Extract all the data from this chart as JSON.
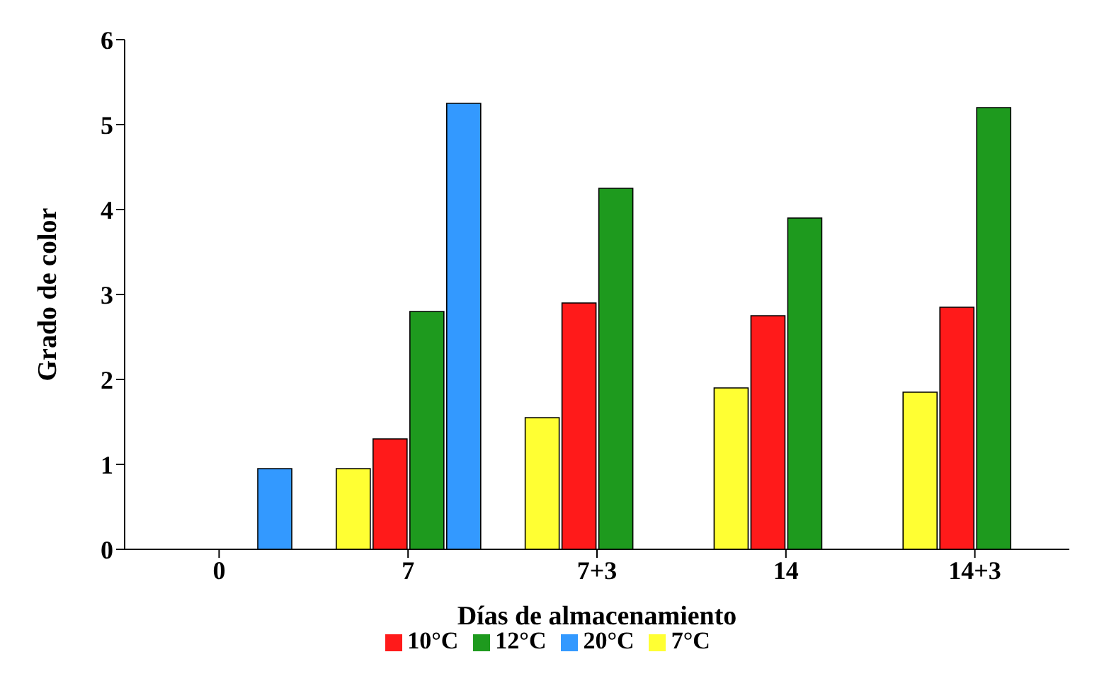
{
  "chart_data": {
    "type": "bar",
    "xlabel": "Días de almacenamiento",
    "ylabel": "Grado de color",
    "categories": [
      "0",
      "7",
      "7+3",
      "14",
      "14+3"
    ],
    "series": [
      {
        "name": "7°C",
        "color": "#ffff33",
        "values": [
          null,
          0.95,
          1.55,
          1.9,
          1.85
        ]
      },
      {
        "name": "10°C",
        "color": "#ff1a1a",
        "values": [
          null,
          1.3,
          2.9,
          2.75,
          2.85
        ]
      },
      {
        "name": "12°C",
        "color": "#1e9a1e",
        "values": [
          null,
          2.8,
          4.25,
          3.9,
          5.2
        ]
      },
      {
        "name": "20°C",
        "color": "#3399ff",
        "values": [
          0.95,
          5.25,
          null,
          null,
          null
        ]
      }
    ],
    "ylim": [
      0,
      6
    ],
    "yticks": [
      0,
      1,
      2,
      3,
      4,
      5,
      6
    ],
    "grid": false,
    "legend": "bottom"
  }
}
